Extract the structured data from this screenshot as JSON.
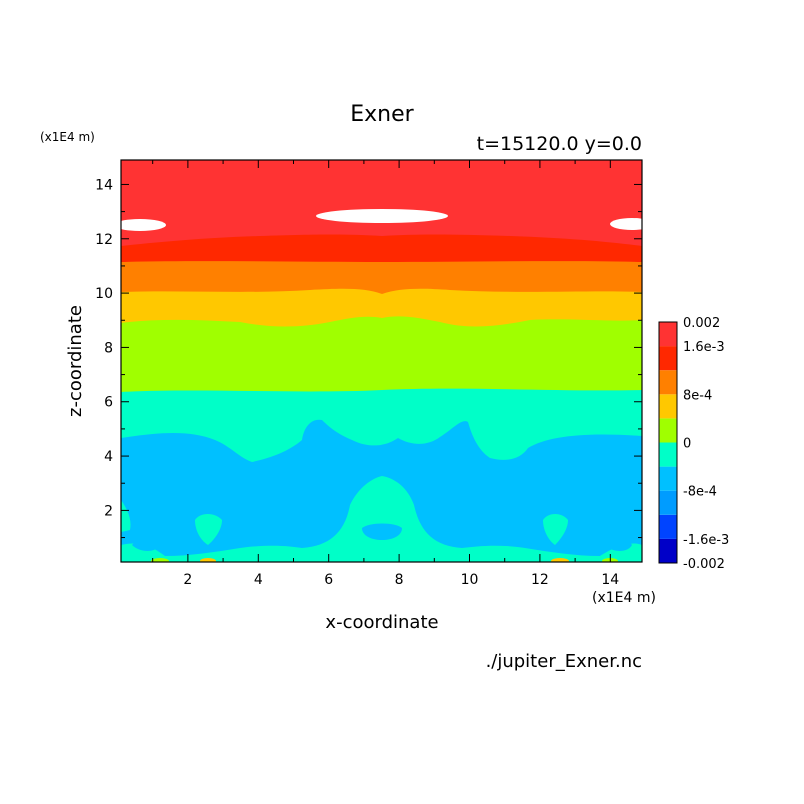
{
  "chart_data": {
    "type": "heatmap",
    "subtype": "filled-contour",
    "title": "Exner",
    "subtitle": "t=15120.0 y=0.0",
    "xlabel": "x-coordinate",
    "ylabel": "z-coordinate",
    "x_unit": "(x1E4 m)",
    "y_unit": "(x1E4 m)",
    "xlim": [
      0.1,
      14.9
    ],
    "ylim": [
      0.1,
      14.9
    ],
    "x_ticks": [
      "2",
      "4",
      "6",
      "8",
      "10",
      "12",
      "14"
    ],
    "y_ticks": [
      "2",
      "4",
      "6",
      "8",
      "10",
      "12",
      "14"
    ],
    "grid": false,
    "legend_position": "right",
    "source_file": "./jupiter_Exner.nc",
    "colorbar": {
      "levels": [
        -0.002,
        -0.0016,
        -0.0012,
        -0.0008,
        -0.0004,
        0,
        0.0004,
        0.0008,
        0.0012,
        0.0016,
        0.002
      ],
      "colors": [
        "#0000c8",
        "#0044ff",
        "#009cff",
        "#00c0ff",
        "#00ffc8",
        "#a0ff00",
        "#ffc800",
        "#ff8000",
        "#ff2800",
        "#ff3333"
      ],
      "tick_labels": [
        {
          "value": 0.002,
          "label": "0.002"
        },
        {
          "value": 0.0016,
          "label": "1.6e-3"
        },
        {
          "value": 0.0008,
          "label": "8e-4"
        },
        {
          "value": 0,
          "label": "0"
        },
        {
          "value": -0.0008,
          "label": "-8e-4"
        },
        {
          "value": -0.0016,
          "label": "-1.6e-3"
        },
        {
          "value": -0.002,
          "label": "-0.002"
        }
      ]
    },
    "above_max_color": "#ffffff",
    "bands_by_height": [
      {
        "z_from": 12.9,
        "z_to": 14.9,
        "band": "1.6e-3 to 0.002"
      },
      {
        "z_from": 12.2,
        "z_to": 12.9,
        "band": "1.6e-3 to 0.002",
        "note": "with white > 0.002 patches near x=1, 7.5, 14"
      },
      {
        "z_from": 11.2,
        "z_to": 12.2,
        "band": "1.2e-3 to 1.6e-3"
      },
      {
        "z_from": 10.1,
        "z_to": 11.2,
        "band": "8e-4 to 1.2e-3"
      },
      {
        "z_from": 8.9,
        "z_to": 10.1,
        "band": "4e-4 to 8e-4"
      },
      {
        "z_from": 6.4,
        "z_to": 8.9,
        "band": "0 to 4e-4"
      },
      {
        "z_from": 4.1,
        "z_to": 6.4,
        "band": "-4e-4 to 0"
      },
      {
        "z_from": 0.8,
        "z_to": 4.1,
        "band": "-8e-4 to -4e-4"
      },
      {
        "z_from": 0.1,
        "z_to": 0.8,
        "band": "-4e-4 to 0"
      }
    ]
  }
}
